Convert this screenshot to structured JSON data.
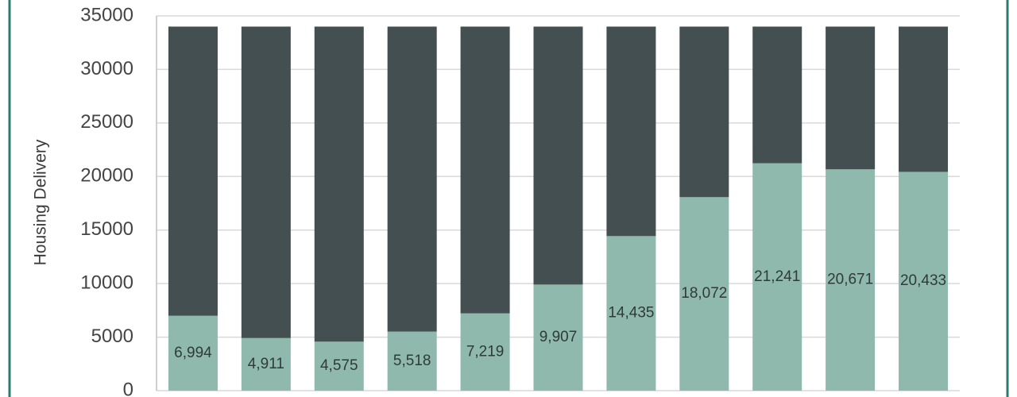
{
  "chart_data": {
    "type": "stacked_bar",
    "y_label": "Housing Delivery",
    "categories": [
      null,
      null,
      null,
      null,
      null,
      null,
      null,
      null,
      null,
      null,
      null
    ],
    "series": [
      {
        "color": "#8fb9ac",
        "values": [
          6994,
          4911,
          4575,
          5518,
          7219,
          9907,
          14435,
          18072,
          21241,
          20671,
          20433
        ],
        "value_labels": [
          "6,994",
          "4,911",
          "4,575",
          "5,518",
          "7,219",
          "9,907",
          "14,435",
          "18,072",
          "21,241",
          "20,671",
          "20,433"
        ]
      },
      {
        "color": "#434f51",
        "values": [
          27006,
          29089,
          29425,
          28482,
          26781,
          24093,
          19565,
          15928,
          12759,
          13329,
          13567
        ]
      }
    ],
    "ylim": [
      0,
      35000
    ],
    "yticks": [
      0,
      5000,
      10000,
      15000,
      20000,
      25000,
      30000,
      35000
    ],
    "grid": true
  }
}
